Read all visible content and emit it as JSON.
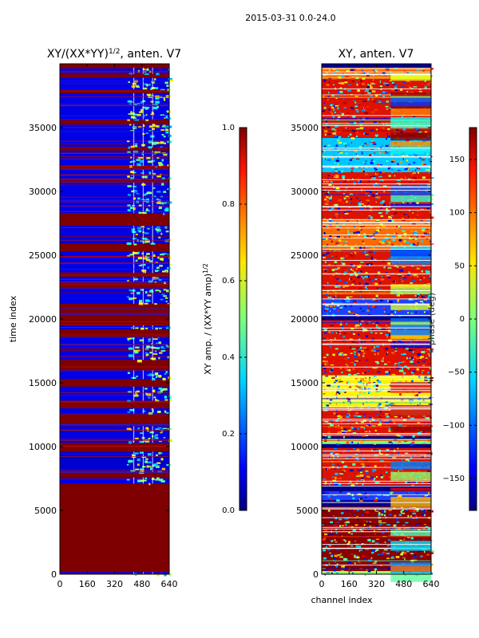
{
  "page": {
    "suptitle": "2015-03-31 0.0-24.0"
  },
  "chart_data": [
    {
      "type": "heatmap",
      "title_text": "XY/(XX*YY)",
      "title_exponent": "1/2",
      "title_suffix": ", anten. V7",
      "xlabel": "",
      "ylabel": "time index",
      "xlim": [
        0,
        640
      ],
      "ylim": [
        0,
        40000
      ],
      "xticks": [
        0,
        160,
        320,
        480,
        640
      ],
      "yticks": [
        0,
        5000,
        10000,
        15000,
        20000,
        25000,
        30000,
        35000
      ],
      "colorbar": {
        "label_text": "XY amp. / (XX*YY amp)",
        "label_exponent": "1/2",
        "vmin": 0.0,
        "vmax": 1.0,
        "ticks": [
          "0.0",
          "0.2",
          "0.4",
          "0.6",
          "0.8",
          "1.0"
        ]
      },
      "colors": {
        "background": "#7f0000",
        "band": "#0000c8",
        "flagged_line": "#1515ff",
        "speckle_a": "#54ffa3",
        "speckle_b": "#00d4ff",
        "speckle_c": "#ffffff"
      },
      "bands": [
        {
          "y0": 0,
          "y1": 160,
          "value": 0.12
        },
        {
          "y0": 7100,
          "y1": 7600,
          "value": 0.1
        },
        {
          "y0": 8000,
          "y1": 9600,
          "value": 0.08
        },
        {
          "y0": 10300,
          "y1": 11600,
          "value": 0.1
        },
        {
          "y0": 12600,
          "y1": 13000,
          "value": 0.1
        },
        {
          "y0": 13600,
          "y1": 14700,
          "value": 0.1
        },
        {
          "y0": 15300,
          "y1": 16000,
          "value": 0.1
        },
        {
          "y0": 16800,
          "y1": 18600,
          "value": 0.1
        },
        {
          "y0": 19200,
          "y1": 19500,
          "value": 0.1
        },
        {
          "y0": 21200,
          "y1": 22400,
          "value": 0.1
        },
        {
          "y0": 22900,
          "y1": 23300,
          "value": 0.1
        },
        {
          "y0": 23600,
          "y1": 25300,
          "value": 0.1
        },
        {
          "y0": 25900,
          "y1": 27300,
          "value": 0.1
        },
        {
          "y0": 28300,
          "y1": 30700,
          "value": 0.1
        },
        {
          "y0": 31000,
          "y1": 31700,
          "value": 0.1
        },
        {
          "y0": 32000,
          "y1": 33200,
          "value": 0.1
        },
        {
          "y0": 33500,
          "y1": 35300,
          "value": 0.1
        },
        {
          "y0": 35600,
          "y1": 37700,
          "value": 0.1
        },
        {
          "y0": 38000,
          "y1": 38900,
          "value": 0.1
        },
        {
          "y0": 39200,
          "y1": 39700,
          "value": 0.1
        }
      ],
      "active_channel_range": [
        390,
        640
      ]
    },
    {
      "type": "heatmap",
      "title_text": "XY, anten. V7",
      "title_exponent": "",
      "title_suffix": "",
      "xlabel": "channel index",
      "ylabel": "",
      "xlim": [
        0,
        640
      ],
      "ylim": [
        0,
        40000
      ],
      "xticks": [
        0,
        160,
        320,
        480,
        640
      ],
      "yticks": [
        0,
        5000,
        10000,
        15000,
        20000,
        25000,
        30000,
        35000
      ],
      "colorbar": {
        "label_text": "phase (deg)",
        "label_exponent": "",
        "vmin": -180,
        "vmax": 180,
        "ticks": [
          "−150",
          "−100",
          "−50",
          "0",
          "50",
          "100",
          "150"
        ]
      },
      "colors": {
        "background": "#00008b",
        "band_red": "#dd1200",
        "band_orange": "#ff6a00",
        "band_green": "#7dff7a",
        "band_cyan": "#00c8ff",
        "band_blue": "#1e40ff",
        "band_yellow": "#fff200",
        "flag_white": "#ffffff"
      },
      "bands": [
        {
          "y0": 0,
          "y1": 250,
          "value": "green"
        },
        {
          "y0": 250,
          "y1": 5300,
          "value": "darkred"
        },
        {
          "y0": 5800,
          "y1": 6500,
          "value": "blue"
        },
        {
          "y0": 7000,
          "y1": 9900,
          "value": "red"
        },
        {
          "y0": 10200,
          "y1": 10600,
          "value": "green"
        },
        {
          "y0": 10800,
          "y1": 13100,
          "value": "red"
        },
        {
          "y0": 13100,
          "y1": 15600,
          "value": "yellow"
        },
        {
          "y0": 15600,
          "y1": 19900,
          "value": "red"
        },
        {
          "y0": 20300,
          "y1": 21600,
          "value": "blue"
        },
        {
          "y0": 21600,
          "y1": 25500,
          "value": "red"
        },
        {
          "y0": 25500,
          "y1": 27800,
          "value": "orange"
        },
        {
          "y0": 27800,
          "y1": 31500,
          "value": "red"
        },
        {
          "y0": 31500,
          "y1": 34200,
          "value": "cyan"
        },
        {
          "y0": 34200,
          "y1": 37200,
          "value": "red"
        },
        {
          "y0": 37200,
          "y1": 38800,
          "value": "red"
        },
        {
          "y0": 38800,
          "y1": 39700,
          "value": "orange"
        }
      ]
    }
  ]
}
